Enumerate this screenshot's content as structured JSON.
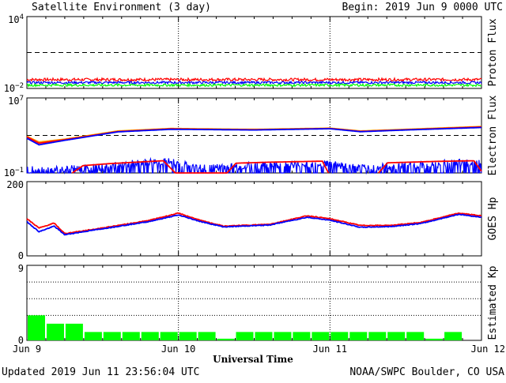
{
  "header": {
    "title": "Satellite Environment (3 day)",
    "begin": "Begin:  2019 Jun 9 0000 UTC"
  },
  "footer": {
    "updated": "Updated 2019 Jun 11 23:56:04 UTC",
    "credit": "NOAA/SWPC Boulder, CO USA",
    "xlabel": "Universal Time"
  },
  "colors": {
    "red": "#ff0000",
    "blue": "#0000ff",
    "green": "#00ff00",
    "orange": "#ffa500",
    "kp_bar": "#00ff00"
  },
  "chart_data": [
    {
      "id": "proton",
      "type": "line",
      "ylabel": "Proton Flux",
      "yscale": "log",
      "ylim": [
        0.01,
        10000
      ],
      "ytick_labels": [
        "10^4",
        "10^-2"
      ],
      "threshold": 10,
      "x_range_days": [
        0,
        3
      ],
      "x_tick_labels": [
        "Jun 9",
        "Jun 10",
        "Jun 11",
        "Jun 12"
      ],
      "series": [
        {
          "color": "red",
          "level": 0.055,
          "noise_decades": 0.12
        },
        {
          "color": "blue",
          "level": 0.031,
          "noise_decades": 0.1
        },
        {
          "color": "green",
          "level": 0.019,
          "noise_decades": 0.1
        }
      ]
    },
    {
      "id": "electron",
      "type": "line",
      "ylabel": "Electron Flux",
      "yscale": "log",
      "ylim": [
        0.1,
        10000000
      ],
      "ytick_labels": [
        "10^7",
        "10^-1"
      ],
      "threshold": 1000,
      "x_range_days": [
        0,
        3
      ],
      "series": [
        {
          "color": "orange",
          "points": [
            [
              0.0,
              800
            ],
            [
              0.08,
              200
            ],
            [
              0.25,
              400
            ],
            [
              0.6,
              3000
            ],
            [
              0.95,
              5500
            ],
            [
              1.2,
              5000
            ],
            [
              1.5,
              4500
            ],
            [
              2.0,
              6000
            ],
            [
              2.2,
              3000
            ],
            [
              2.5,
              4500
            ],
            [
              3.0,
              9000
            ]
          ]
        },
        {
          "color": "red",
          "points": [
            [
              0.0,
              700
            ],
            [
              0.08,
              150
            ],
            [
              0.25,
              350
            ],
            [
              0.6,
              2600
            ],
            [
              0.95,
              5000
            ],
            [
              1.2,
              4500
            ],
            [
              1.5,
              4000
            ],
            [
              2.0,
              5500
            ],
            [
              2.2,
              2700
            ],
            [
              2.5,
              4000
            ],
            [
              3.0,
              8000
            ]
          ]
        },
        {
          "color": "blue",
          "points": [
            [
              0.0,
              500
            ],
            [
              0.08,
              100
            ],
            [
              0.25,
              300
            ],
            [
              0.6,
              2400
            ],
            [
              0.95,
              4500
            ],
            [
              1.2,
              4200
            ],
            [
              1.5,
              3800
            ],
            [
              2.0,
              5200
            ],
            [
              2.2,
              2500
            ],
            [
              2.5,
              3800
            ],
            [
              3.0,
              7000
            ]
          ]
        },
        {
          "color": "blue",
          "spiky": true,
          "points": [
            [
              0.0,
              0.2
            ],
            [
              0.25,
              0.25
            ],
            [
              0.5,
              0.4
            ],
            [
              0.8,
              1.5
            ],
            [
              0.95,
              1.5
            ],
            [
              1.15,
              0.3
            ],
            [
              1.4,
              0.5
            ],
            [
              1.7,
              0.8
            ],
            [
              2.0,
              1.0
            ],
            [
              2.2,
              0.3
            ],
            [
              2.5,
              0.6
            ],
            [
              3.0,
              1.5
            ]
          ]
        },
        {
          "color": "red",
          "points": [
            [
              0.3,
              0.1
            ],
            [
              0.37,
              0.6
            ],
            [
              0.55,
              1.0
            ],
            [
              0.9,
              2.0
            ],
            [
              0.98,
              0.1
            ],
            [
              1.32,
              0.1
            ],
            [
              1.38,
              1.1
            ],
            [
              1.6,
              1.4
            ],
            [
              1.95,
              1.8
            ],
            [
              1.99,
              0.1
            ]
          ]
        },
        {
          "color": "red",
          "points": [
            [
              2.32,
              0.1
            ],
            [
              2.38,
              1.2
            ],
            [
              2.7,
              1.7
            ],
            [
              2.95,
              2.0
            ],
            [
              3.0,
              0.15
            ]
          ]
        }
      ]
    },
    {
      "id": "hp",
      "type": "line",
      "ylabel": "GOES Hp",
      "yscale": "linear",
      "ylim": [
        0,
        200
      ],
      "ytick_labels": [
        "200",
        "0"
      ],
      "x_range_days": [
        0,
        3
      ],
      "series": [
        {
          "color": "red",
          "points": [
            [
              0.0,
              100
            ],
            [
              0.08,
              75
            ],
            [
              0.18,
              88
            ],
            [
              0.25,
              60
            ],
            [
              0.45,
              72
            ],
            [
              0.8,
              95
            ],
            [
              1.0,
              115
            ],
            [
              1.15,
              95
            ],
            [
              1.3,
              80
            ],
            [
              1.6,
              85
            ],
            [
              1.85,
              108
            ],
            [
              2.0,
              100
            ],
            [
              2.2,
              82
            ],
            [
              2.4,
              82
            ],
            [
              2.6,
              90
            ],
            [
              2.85,
              115
            ],
            [
              3.0,
              108
            ]
          ]
        },
        {
          "color": "blue",
          "points": [
            [
              0.0,
              92
            ],
            [
              0.08,
              65
            ],
            [
              0.18,
              80
            ],
            [
              0.25,
              57
            ],
            [
              0.45,
              70
            ],
            [
              0.8,
              92
            ],
            [
              1.0,
              110
            ],
            [
              1.15,
              92
            ],
            [
              1.3,
              78
            ],
            [
              1.6,
              83
            ],
            [
              1.85,
              104
            ],
            [
              2.0,
              96
            ],
            [
              2.2,
              77
            ],
            [
              2.4,
              79
            ],
            [
              2.6,
              87
            ],
            [
              2.85,
              112
            ],
            [
              3.0,
              104
            ]
          ]
        }
      ]
    },
    {
      "id": "kp",
      "type": "bar",
      "ylabel": "Estimated Kp",
      "ylim": [
        0,
        9
      ],
      "ytick_labels": [
        "9",
        "0"
      ],
      "x_range_days": [
        0,
        3
      ],
      "bar_color": "kp_bar",
      "values": [
        3,
        2,
        2,
        1,
        1,
        1,
        1,
        1,
        1,
        1,
        0.2,
        1,
        1,
        1,
        1,
        1,
        1,
        1,
        1,
        1,
        1,
        0.2,
        1,
        0
      ]
    }
  ]
}
